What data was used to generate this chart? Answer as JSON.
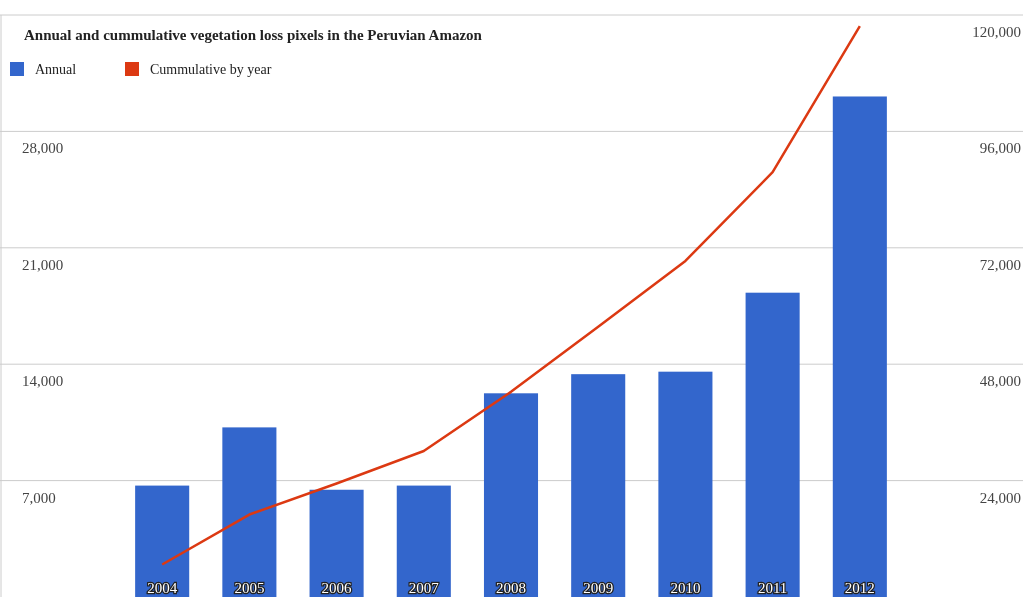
{
  "chart_data": {
    "type": "bar",
    "title": "Annual and cummulative vegetation loss pixels in the Peruvian Amazon",
    "categories": [
      "2004",
      "2005",
      "2006",
      "2007",
      "2008",
      "2009",
      "2010",
      "2011",
      "2012"
    ],
    "series": [
      {
        "name": "Annual",
        "color": "#3366cc",
        "values": [
          6700,
          10200,
          6450,
          6700,
          12250,
          13400,
          13550,
          18300,
          30100
        ]
      },
      {
        "name": "Cummulative by year",
        "type": "line",
        "axis": "y2",
        "color": "#dc3912",
        "values": [
          6700,
          17000,
          23400,
          30100,
          42300,
          55700,
          69300,
          87600,
          117700
        ]
      }
    ],
    "ylim": [
      0,
      35000
    ],
    "yticks": [
      {
        "value": 7000,
        "label": "7,000"
      },
      {
        "value": 14000,
        "label": "14,000"
      },
      {
        "value": 21000,
        "label": "21,000"
      },
      {
        "value": 28000,
        "label": "28,000"
      }
    ],
    "y2lim": [
      0,
      120000
    ],
    "y2ticks": [
      {
        "value": 24000,
        "label": "24,000"
      },
      {
        "value": 48000,
        "label": "48,000"
      },
      {
        "value": 72000,
        "label": "72,000"
      },
      {
        "value": 96000,
        "label": "96,000"
      },
      {
        "value": 120000,
        "label": "120,000"
      }
    ],
    "grid": "y",
    "legend": "top left",
    "marker": "none"
  }
}
